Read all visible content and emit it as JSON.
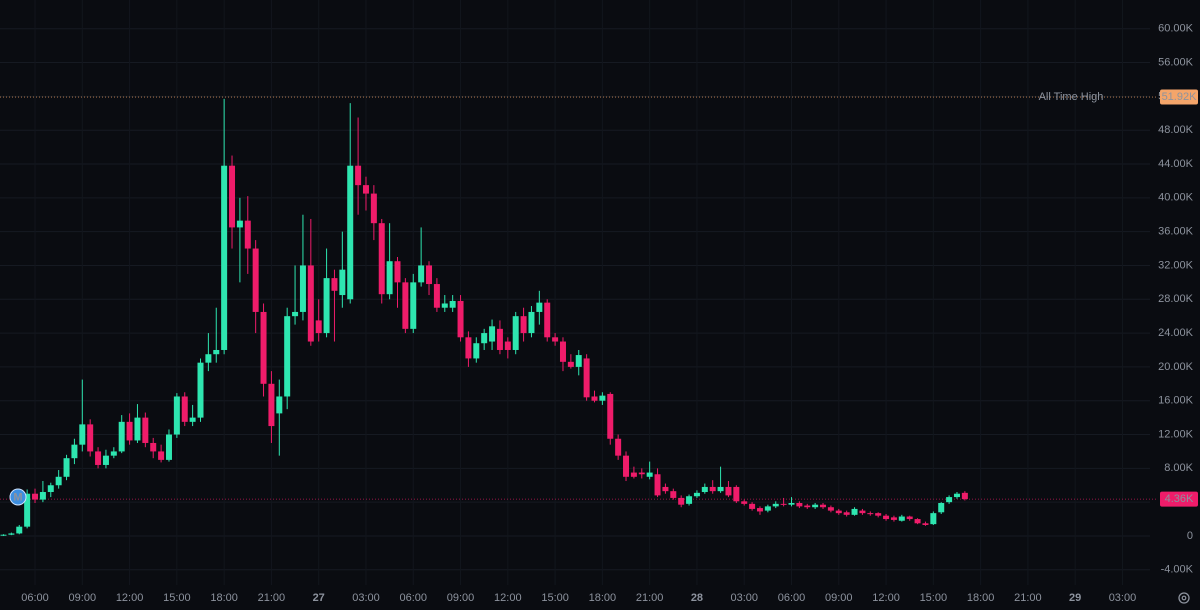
{
  "chart_data": {
    "type": "candlestick",
    "categories": [
      null,
      null,
      null,
      null,
      "06:00",
      null,
      null,
      null,
      null,
      null,
      "09:00",
      null,
      null,
      null,
      null,
      null,
      "12:00",
      null,
      null,
      null,
      null,
      null,
      "15:00",
      null,
      null,
      null,
      null,
      null,
      "18:00",
      null,
      null,
      null,
      null,
      null,
      "21:00",
      null,
      null,
      null,
      null,
      null,
      "27",
      null,
      null,
      null,
      null,
      null,
      "03:00",
      null,
      null,
      null,
      null,
      null,
      "06:00",
      null,
      null,
      null,
      null,
      null,
      "09:00",
      null,
      null,
      null,
      null,
      null,
      "12:00",
      null,
      null,
      null,
      null,
      null,
      "15:00",
      null,
      null,
      null,
      null,
      null,
      "18:00",
      null,
      null,
      null,
      null,
      null,
      "21:00",
      null,
      null,
      null,
      null,
      null,
      "28",
      null,
      null,
      null,
      null,
      null,
      "03:00",
      null,
      null,
      null,
      null,
      null,
      "06:00",
      null,
      null,
      null,
      null,
      null,
      "09:00",
      null,
      null,
      null,
      null,
      null,
      "12:00",
      null,
      null,
      null,
      null,
      null,
      "15:00",
      null,
      null,
      null,
      null,
      null,
      "18:00",
      null,
      null,
      null,
      null,
      null,
      "21:00",
      null,
      null,
      null,
      null,
      null,
      "29",
      null,
      null,
      null,
      null,
      null,
      "03:00"
    ],
    "open": [
      100,
      150,
      300,
      1100,
      5000,
      4300,
      5200,
      6000,
      7000,
      9200,
      10800,
      13200,
      10000,
      8400,
      9500,
      10000,
      13500,
      11300,
      14000,
      11000,
      10000,
      9000,
      12000,
      16500,
      13500,
      14000,
      20500,
      21500,
      22000,
      43800,
      36500,
      37300,
      34000,
      26500,
      18000,
      14500,
      16500,
      26000,
      26500,
      32000,
      25500,
      24000,
      30500,
      28500,
      28000,
      43800,
      41500,
      40500,
      37000,
      28600,
      32500,
      30000,
      24500,
      30000,
      32000,
      29800,
      27000,
      27000,
      27800,
      23500,
      21000,
      22800,
      23000,
      24500,
      23000,
      22000,
      26000,
      24000,
      26500,
      27600,
      23500,
      23000,
      20600,
      20000,
      21000,
      16500,
      16000,
      16800,
      11500,
      9500,
      7500,
      7500,
      7000,
      7300,
      5800,
      5300,
      4500,
      3800,
      4700,
      5200,
      5800,
      5300,
      5800,
      5800,
      4100,
      3800,
      3300,
      3000,
      3500,
      3800,
      3700,
      3900,
      3600,
      3400,
      3700,
      3400,
      3000,
      2800,
      2500,
      3000,
      2700,
      2700,
      2400,
      2200,
      1800,
      2300,
      2000,
      1500,
      1400,
      2800,
      4000,
      4600,
      5100,
      null,
      null,
      null,
      null,
      null,
      null,
      null,
      null,
      null,
      null,
      null,
      null,
      null,
      null,
      null,
      null,
      null,
      null,
      null,
      null
    ],
    "high": [
      200,
      400,
      1300,
      5500,
      5600,
      6500,
      6300,
      7800,
      9600,
      11500,
      18500,
      13800,
      10500,
      10200,
      10500,
      14300,
      14500,
      15600,
      14600,
      11600,
      10800,
      12600,
      16900,
      17000,
      15500,
      21000,
      24000,
      27000,
      51700,
      45000,
      40000,
      40200,
      35000,
      27500,
      19500,
      18500,
      27000,
      32000,
      38000,
      37500,
      28000,
      34000,
      31500,
      36000,
      51200,
      49500,
      42500,
      41500,
      37500,
      37000,
      33000,
      30500,
      31000,
      36500,
      32500,
      30500,
      28500,
      28500,
      28500,
      24200,
      23500,
      24500,
      25600,
      25500,
      23500,
      26500,
      27000,
      27200,
      29000,
      28000,
      24000,
      23500,
      21500,
      22000,
      21500,
      17200,
      17000,
      17000,
      12000,
      10000,
      8200,
      8000,
      8800,
      8000,
      6200,
      5600,
      4800,
      4900,
      5400,
      6200,
      6600,
      8200,
      6500,
      6000,
      4300,
      4000,
      3500,
      3700,
      4100,
      4500,
      4600,
      4100,
      3800,
      3900,
      3900,
      3600,
      3200,
      3000,
      3400,
      3200,
      2900,
      2800,
      2600,
      2400,
      2500,
      2400,
      2100,
      1700,
      2900,
      4000,
      4800,
      5200,
      5300,
      null,
      null,
      null,
      null,
      null,
      null,
      null,
      null,
      null,
      null,
      null,
      null,
      null,
      null,
      null,
      null,
      null,
      null,
      null,
      null
    ],
    "low": [
      0,
      100,
      200,
      900,
      3900,
      4000,
      4600,
      5600,
      6600,
      8500,
      10000,
      9400,
      8000,
      8000,
      9200,
      9800,
      10800,
      11000,
      10500,
      9200,
      8700,
      8800,
      11600,
      13000,
      13000,
      13500,
      19500,
      20500,
      21500,
      34000,
      30000,
      31000,
      24000,
      16500,
      11000,
      9500,
      15000,
      25000,
      25500,
      22500,
      23000,
      23500,
      23000,
      27000,
      27500,
      38000,
      38500,
      35000,
      27500,
      28000,
      27000,
      24000,
      24000,
      29500,
      28500,
      26500,
      26500,
      26500,
      23000,
      20000,
      20500,
      22000,
      22000,
      21500,
      21000,
      21500,
      23000,
      23500,
      25000,
      23000,
      22500,
      19500,
      19800,
      19000,
      16000,
      15800,
      15500,
      10800,
      9000,
      6500,
      6800,
      6800,
      6700,
      4600,
      5000,
      4300,
      3400,
      3600,
      4500,
      5000,
      5000,
      5100,
      4600,
      3900,
      3600,
      3000,
      2500,
      2800,
      3300,
      3500,
      3500,
      3300,
      3200,
      3200,
      3200,
      2800,
      2500,
      2300,
      2400,
      2500,
      2400,
      2200,
      1800,
      1700,
      1700,
      1800,
      1400,
      1200,
      1300,
      2600,
      3800,
      4400,
      4200,
      null,
      null,
      null,
      null,
      null,
      null,
      null,
      null,
      null,
      null,
      null,
      null,
      null,
      null,
      null,
      null,
      null,
      null,
      null,
      null
    ],
    "close": [
      150,
      300,
      1100,
      5000,
      4300,
      5200,
      6000,
      7000,
      9200,
      10800,
      13200,
      10000,
      8400,
      9500,
      10000,
      13500,
      11300,
      14000,
      11000,
      10000,
      9000,
      12000,
      16500,
      13500,
      14000,
      20500,
      21500,
      22000,
      43800,
      36500,
      37300,
      34000,
      26500,
      18000,
      13000,
      16500,
      26000,
      26500,
      32000,
      23000,
      24000,
      30500,
      29000,
      31500,
      43800,
      41500,
      40500,
      37000,
      28600,
      32500,
      30000,
      24500,
      30000,
      32000,
      29800,
      27000,
      27500,
      27800,
      23500,
      21000,
      22800,
      24000,
      24800,
      22000,
      22000,
      26000,
      24000,
      26500,
      27600,
      23500,
      23000,
      20600,
      20000,
      21400,
      16400,
      16000,
      16600,
      11500,
      9500,
      7000,
      7000,
      7300,
      7500,
      4800,
      5300,
      4500,
      3700,
      4700,
      5100,
      5800,
      5300,
      5800,
      4800,
      4100,
      3800,
      3200,
      2900,
      3500,
      3800,
      3700,
      3900,
      3500,
      3400,
      3700,
      3400,
      3000,
      2700,
      2500,
      3200,
      2700,
      2600,
      2400,
      2000,
      1900,
      2300,
      2000,
      1500,
      1300,
      2700,
      3900,
      4600,
      5000,
      4360,
      null,
      null,
      null,
      null,
      null,
      null,
      null,
      null,
      null,
      null,
      null,
      null,
      null,
      null,
      null,
      null,
      null,
      null,
      null,
      null
    ],
    "up_color": "#2ee6b0",
    "down_color": "#ef1c6a",
    "ylim": [
      -5800,
      63400
    ],
    "yticks": [
      {
        "value": 60000,
        "label": "60.00K"
      },
      {
        "value": 56000,
        "label": "56.00K"
      },
      {
        "value": 52000,
        "label": "52.00K"
      },
      {
        "value": 48000,
        "label": "48.00K"
      },
      {
        "value": 44000,
        "label": "44.00K"
      },
      {
        "value": 40000,
        "label": "40.00K"
      },
      {
        "value": 36000,
        "label": "36.00K"
      },
      {
        "value": 32000,
        "label": "32.00K"
      },
      {
        "value": 28000,
        "label": "28.00K"
      },
      {
        "value": 24000,
        "label": "24.00K"
      },
      {
        "value": 20000,
        "label": "20.00K"
      },
      {
        "value": 16000,
        "label": "16.00K"
      },
      {
        "value": 12000,
        "label": "12.00K"
      },
      {
        "value": 8000,
        "label": "8.00K"
      },
      {
        "value": 4000,
        "label": "4.00K"
      },
      0,
      {
        "value": -4000,
        "label": "-4.00K"
      }
    ],
    "grid": true,
    "all_time_high": {
      "text": "All Time High",
      "value": 51920,
      "value_label": "51.92K",
      "color": "#f4a56a"
    },
    "last_price": {
      "value": 4360,
      "value_label": "4.36K",
      "color": "#ef1c6a"
    },
    "event_marker": "M"
  }
}
